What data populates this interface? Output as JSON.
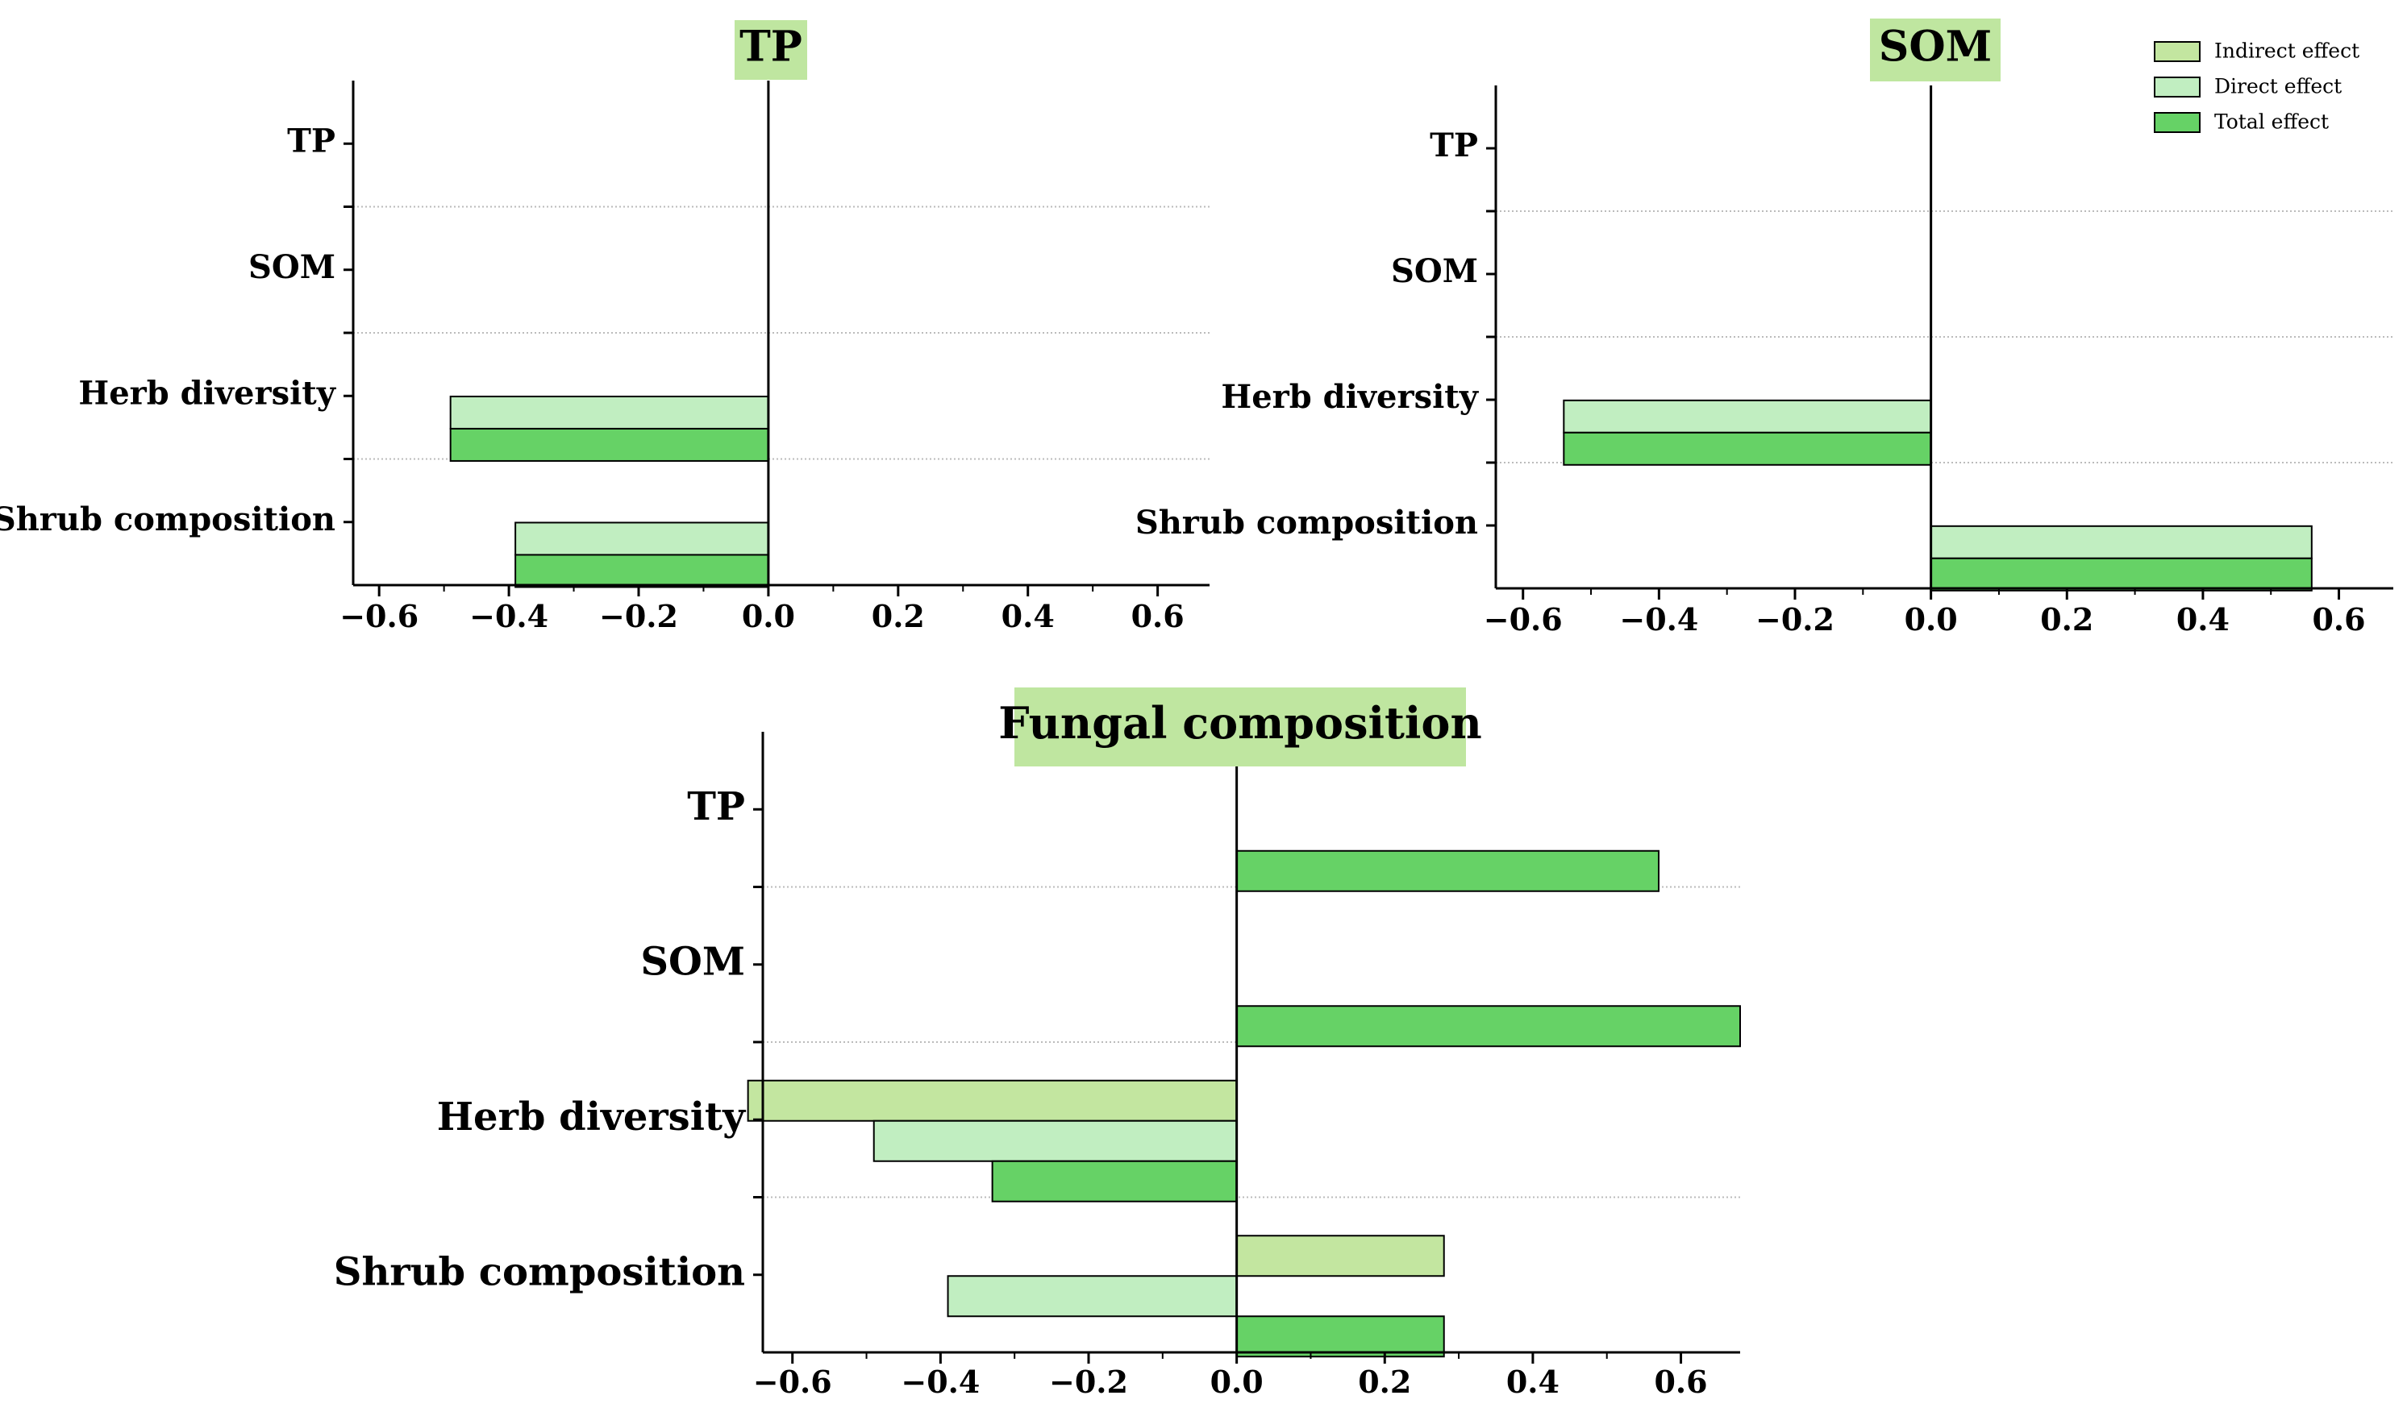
{
  "legend": [
    {
      "name": "Indirect effect",
      "color": "#c3e6a0"
    },
    {
      "name": "Direct effect",
      "color": "#c1eec1"
    },
    {
      "name": "Total effect",
      "color": "#66d266"
    }
  ],
  "colors": {
    "title_bg": "#bfe6a0",
    "axis": "#000000",
    "grid": "#bbbbbb"
  },
  "chart_data": [
    {
      "type": "bar",
      "orientation": "horizontal",
      "title": "TP",
      "categories": [
        "TP",
        "SOM",
        "Herb diversity",
        "Shrub composition"
      ],
      "series": [
        {
          "name": "Indirect effect",
          "values": [
            null,
            null,
            null,
            null
          ]
        },
        {
          "name": "Direct effect",
          "values": [
            null,
            null,
            -0.49,
            -0.39
          ]
        },
        {
          "name": "Total effect",
          "values": [
            null,
            null,
            -0.49,
            -0.39
          ]
        }
      ],
      "xlim": [
        -0.64,
        0.68
      ],
      "xticks": [
        -0.6,
        -0.4,
        -0.2,
        0.0,
        0.2,
        0.4,
        0.6
      ],
      "xtick_labels": [
        "−0.6",
        "−0.4",
        "−0.2",
        "0.0",
        "0.2",
        "0.4",
        "0.6"
      ],
      "grid": "dotted separators between categories"
    },
    {
      "type": "bar",
      "orientation": "horizontal",
      "title": "SOM",
      "categories": [
        "TP",
        "SOM",
        "Herb diversity",
        "Shrub composition"
      ],
      "series": [
        {
          "name": "Indirect effect",
          "values": [
            null,
            null,
            null,
            null
          ]
        },
        {
          "name": "Direct effect",
          "values": [
            null,
            null,
            -0.54,
            0.56
          ]
        },
        {
          "name": "Total effect",
          "values": [
            null,
            null,
            -0.54,
            0.56
          ]
        }
      ],
      "xlim": [
        -0.64,
        0.68
      ],
      "xticks": [
        -0.6,
        -0.4,
        -0.2,
        0.0,
        0.2,
        0.4,
        0.6
      ],
      "xtick_labels": [
        "−0.6",
        "−0.4",
        "−0.2",
        "0.0",
        "0.2",
        "0.4",
        "0.6"
      ],
      "grid": "dotted separators between categories",
      "legend_position": "top-right"
    },
    {
      "type": "bar",
      "orientation": "horizontal",
      "title": "Fungal composition",
      "categories": [
        "TP",
        "SOM",
        "Herb diversity",
        "Shrub composition"
      ],
      "series": [
        {
          "name": "Indirect effect",
          "values": [
            null,
            null,
            -0.66,
            0.28
          ]
        },
        {
          "name": "Direct effect",
          "values": [
            null,
            null,
            -0.49,
            -0.39
          ]
        },
        {
          "name": "Total effect",
          "values": [
            0.57,
            0.68,
            -0.33,
            0.28
          ]
        }
      ],
      "xlim": [
        -0.64,
        0.68
      ],
      "xticks": [
        -0.6,
        -0.4,
        -0.2,
        0.0,
        0.2,
        0.4,
        0.6
      ],
      "xtick_labels": [
        "−0.6",
        "−0.4",
        "−0.2",
        "0.0",
        "0.2",
        "0.4",
        "0.6"
      ],
      "grid": "dotted separators between categories"
    }
  ]
}
